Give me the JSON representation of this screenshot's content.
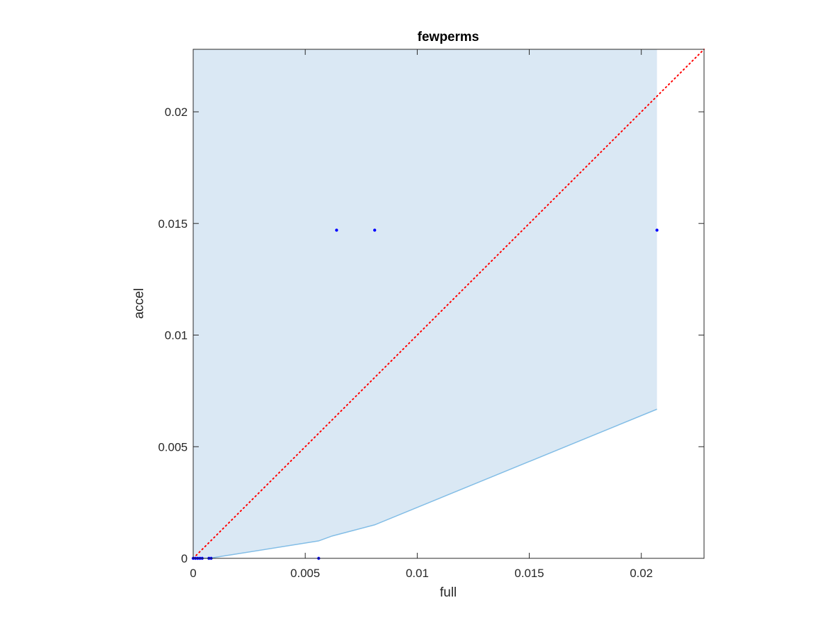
{
  "chart_data": {
    "type": "scatter",
    "title": "fewperms",
    "xlabel": "full",
    "ylabel": "accel",
    "xlim": [
      0,
      0.0228
    ],
    "ylim": [
      0,
      0.0228
    ],
    "x_ticks": [
      0,
      0.005,
      0.01,
      0.015,
      0.02
    ],
    "x_tick_labels": [
      "0",
      "0.005",
      "0.01",
      "0.015",
      "0.02"
    ],
    "y_ticks": [
      0,
      0.005,
      0.01,
      0.015,
      0.02
    ],
    "y_tick_labels": [
      "0",
      "0.005",
      "0.01",
      "0.015",
      "0.02"
    ],
    "grid": false,
    "shaded_region": {
      "color": "#dae8f4",
      "x": [
        0,
        0.0007,
        0.0056,
        0.0062,
        0.0081,
        0.0207
      ],
      "lower": [
        0,
        0,
        0.00078,
        0.001,
        0.0015,
        0.00668
      ],
      "upper": 0.0228
    },
    "lower_bound_line": {
      "color": "#82bde6",
      "x": [
        0,
        0.0007,
        0.0056,
        0.0062,
        0.0081,
        0.0207
      ],
      "y": [
        0,
        0,
        0.00078,
        0.001,
        0.0015,
        0.00668
      ]
    },
    "reference_line": {
      "color": "#ff0000",
      "style": "dotted",
      "x": [
        0,
        0.0228
      ],
      "y": [
        0,
        0.0228
      ]
    },
    "points": {
      "color": "#0000ff",
      "x": [
        0,
        0.0001,
        0.0002,
        0.0003,
        0.0004,
        0.0007,
        0.0008,
        0.0056,
        0.0064,
        0.0081,
        0.0207
      ],
      "y": [
        0,
        0,
        0,
        0,
        0,
        0,
        0,
        0,
        0.0147,
        0.0147,
        0.0147
      ]
    }
  }
}
